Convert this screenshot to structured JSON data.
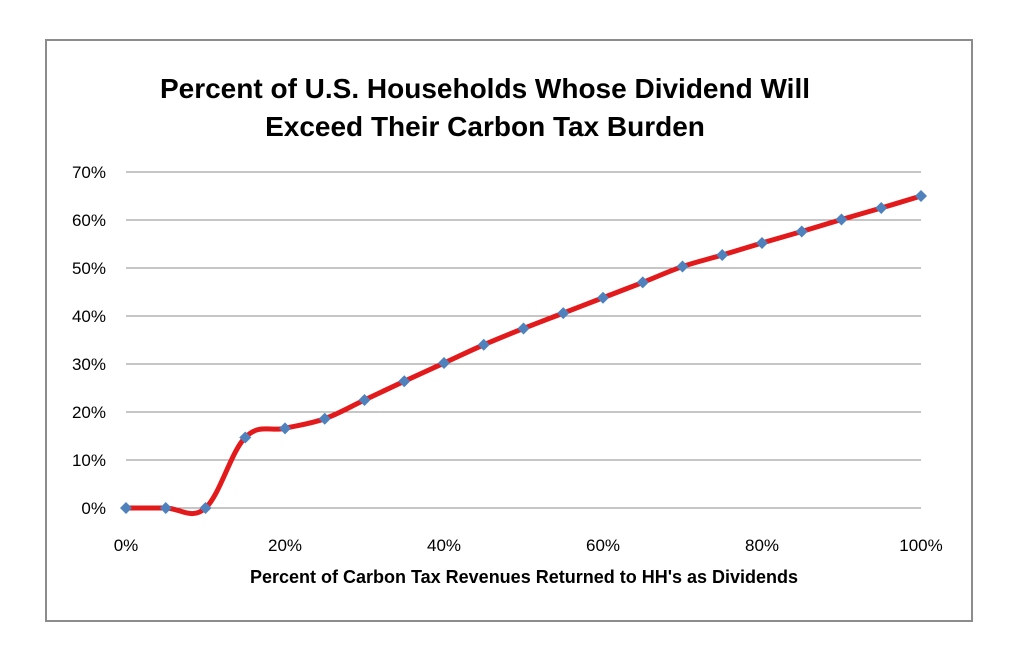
{
  "chart_data": {
    "type": "line",
    "title_lines": [
      "Percent of U.S. Households Whose Dividend Will",
      "Exceed Their Carbon Tax Burden"
    ],
    "xlabel": "Percent of Carbon Tax Revenues Returned to HH's as Dividends",
    "ylabel": "",
    "x_ticks": [
      "0%",
      "20%",
      "40%",
      "60%",
      "80%",
      "100%"
    ],
    "y_ticks": [
      "0%",
      "10%",
      "20%",
      "30%",
      "40%",
      "50%",
      "60%",
      "70%"
    ],
    "xlim": [
      0,
      100
    ],
    "ylim": [
      0,
      70
    ],
    "grid": "horizontal",
    "line_color": "#e31a1c",
    "marker_color": "#4f81bd",
    "marker": "diamond",
    "series": [
      {
        "x": [
          0,
          5,
          10,
          15,
          20,
          25,
          30,
          35,
          40,
          45,
          50,
          55,
          60,
          65,
          70,
          75,
          80,
          85,
          90,
          95,
          100
        ],
        "values": [
          0,
          0,
          0,
          14.7,
          16.6,
          18.6,
          22.5,
          26.4,
          30.2,
          34.0,
          37.4,
          40.6,
          43.8,
          47.0,
          50.3,
          52.7,
          55.2,
          57.6,
          60.1,
          62.5,
          65.0
        ]
      }
    ]
  }
}
